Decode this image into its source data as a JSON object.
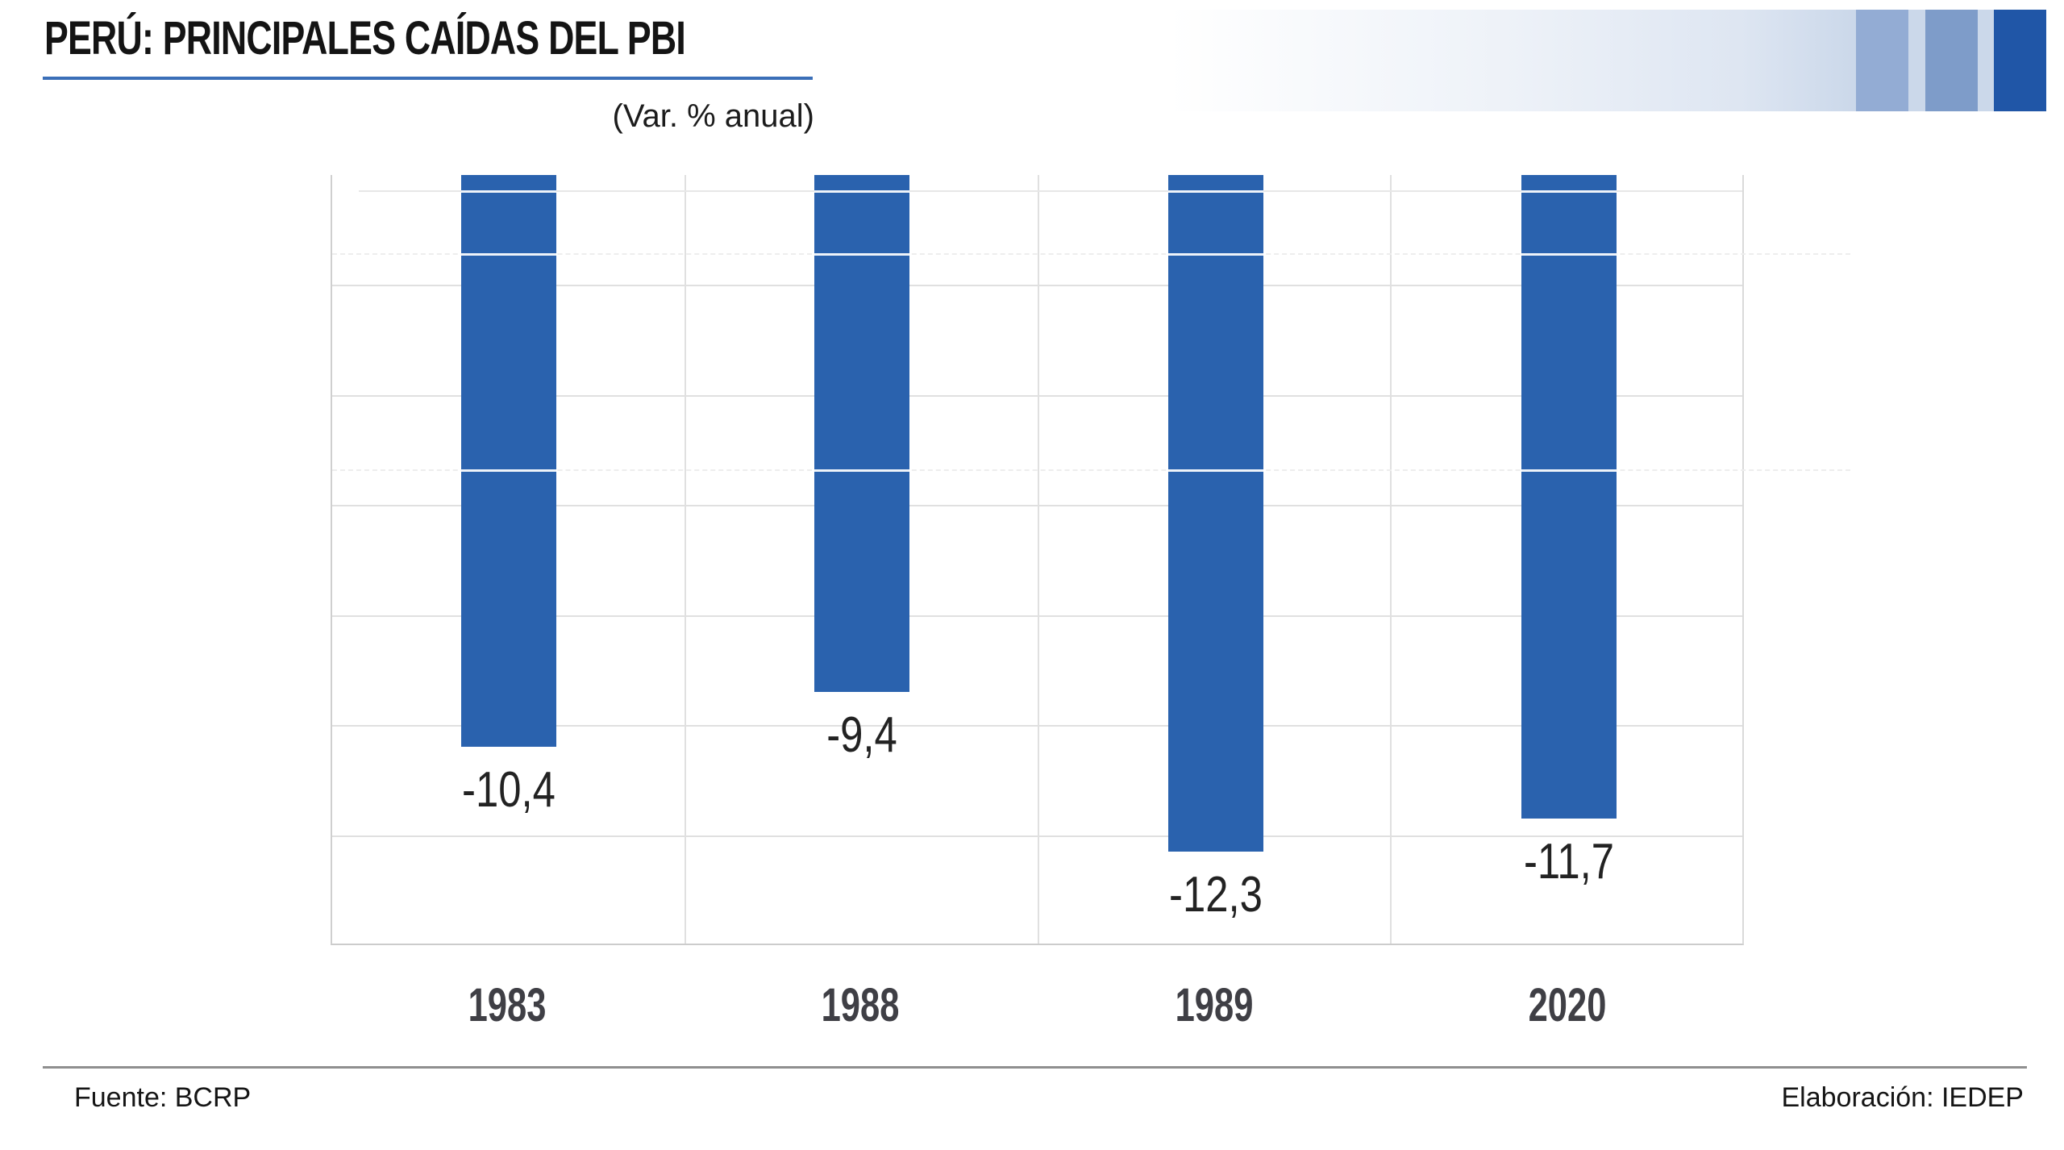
{
  "header": {
    "title": "PERÚ: PRINCIPALES CAÍDAS DEL PBI",
    "subtitle": "(Var. % anual)"
  },
  "footer": {
    "source": "Fuente: BCRP",
    "elaboration": "Elaboración: IEDEP"
  },
  "colors": {
    "bar": "#2A62AE",
    "title_underline": "#3B6FB8",
    "deco_stripe_light": "#93ACD4",
    "deco_stripe_mid": "#7E9CC9",
    "deco_stripe_dark": "#2056A7",
    "deco_band_tint": "#CBD8EA",
    "gridline": "#E0E0E0",
    "footer_line": "#8F8F8F"
  },
  "chart_data": {
    "type": "bar",
    "title": "PERÚ: PRINCIPALES CAÍDAS DEL PBI",
    "subtitle": "(Var. % anual)",
    "categories": [
      "1983",
      "1988",
      "1989",
      "2020"
    ],
    "values": [
      -10.4,
      -9.4,
      -12.3,
      -11.7
    ],
    "labels": [
      "-10,4",
      "-9,4",
      "-12,3",
      "-11,7"
    ],
    "xlabel": "",
    "ylabel": "Var. % anual",
    "ylim": [
      -14,
      0
    ],
    "gridline_step": 2,
    "grid": true,
    "legend": false,
    "bar_color": "#2A62AE",
    "source": "Fuente: BCRP",
    "elaboration": "Elaboración: IEDEP"
  }
}
